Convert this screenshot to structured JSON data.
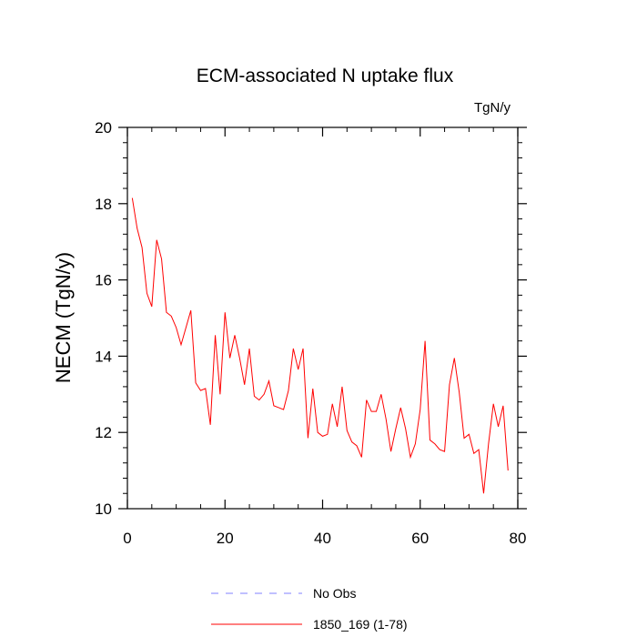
{
  "chart_data": {
    "type": "line",
    "title": "ECM-associated N uptake flux",
    "units_label": "TgN/y",
    "ylabel": "NECM  (TgN/y)",
    "xlabel": "",
    "xlim": [
      0,
      80
    ],
    "ylim": [
      10,
      20
    ],
    "xticks": [
      0,
      20,
      40,
      60,
      80
    ],
    "yticks": [
      10,
      12,
      14,
      16,
      18,
      20
    ],
    "x_minor_step": 5,
    "y_minor_step": 0.4,
    "grid": false,
    "legend_position": "bottom-center",
    "series": [
      {
        "name": "No Obs",
        "color": "#8080ff",
        "dash": "dashed",
        "x": [],
        "values": []
      },
      {
        "name": "1850_169 (1-78)",
        "color": "#ff0000",
        "dash": "solid",
        "x": [
          1,
          2,
          3,
          4,
          5,
          6,
          7,
          8,
          9,
          10,
          11,
          12,
          13,
          14,
          15,
          16,
          17,
          18,
          19,
          20,
          21,
          22,
          23,
          24,
          25,
          26,
          27,
          28,
          29,
          30,
          31,
          32,
          33,
          34,
          35,
          36,
          37,
          38,
          39,
          40,
          41,
          42,
          43,
          44,
          45,
          46,
          47,
          48,
          49,
          50,
          51,
          52,
          53,
          54,
          55,
          56,
          57,
          58,
          59,
          60,
          61,
          62,
          63,
          64,
          65,
          66,
          67,
          68,
          69,
          70,
          71,
          72,
          73,
          74,
          75,
          76,
          77,
          78
        ],
        "values": [
          18.15,
          17.35,
          16.85,
          15.65,
          15.3,
          17.05,
          16.55,
          15.15,
          15.05,
          14.75,
          14.3,
          14.75,
          15.2,
          13.3,
          13.1,
          13.15,
          12.2,
          14.55,
          13.0,
          15.15,
          13.95,
          14.55,
          13.95,
          13.25,
          14.2,
          12.95,
          12.85,
          13.0,
          13.35,
          12.7,
          12.65,
          12.6,
          13.1,
          14.2,
          13.65,
          14.2,
          11.85,
          13.15,
          12.0,
          11.9,
          11.95,
          12.75,
          12.15,
          13.2,
          12.05,
          11.75,
          11.65,
          11.35,
          12.85,
          12.55,
          12.55,
          13.0,
          12.35,
          11.5,
          12.1,
          12.65,
          12.1,
          11.35,
          11.7,
          12.6,
          14.4,
          11.8,
          11.7,
          11.55,
          11.5,
          13.25,
          13.95,
          13.05,
          11.85,
          11.95,
          11.45,
          11.55,
          10.4,
          11.7,
          12.75,
          12.15,
          12.7,
          11.0
        ]
      }
    ]
  }
}
